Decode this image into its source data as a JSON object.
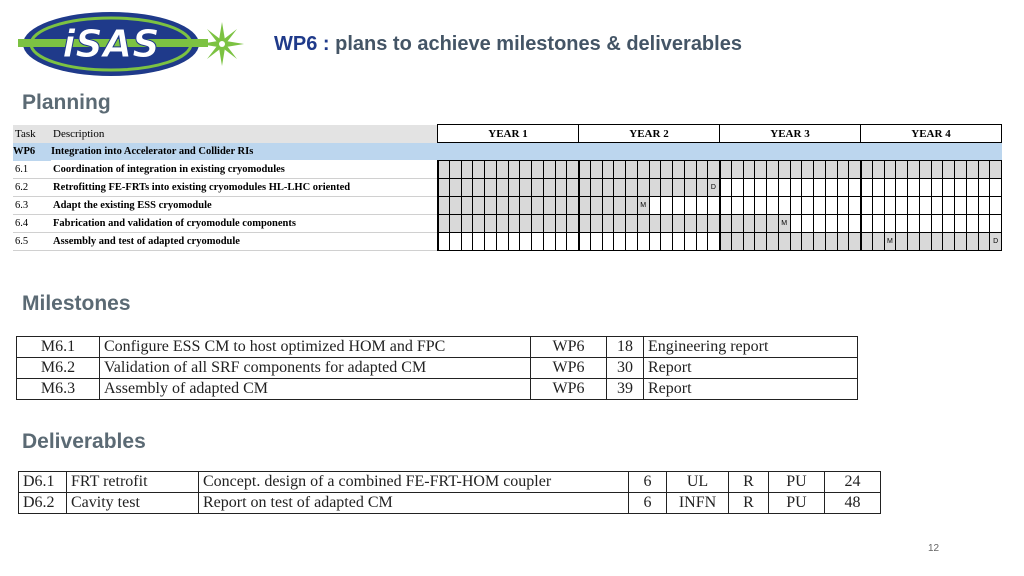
{
  "logo": {
    "text": "iSAS",
    "colors": {
      "blue": "#1f3a8a",
      "green": "#7cc242",
      "light": "#bfe0a0"
    }
  },
  "header": {
    "title_strong": "WP6 :",
    "title_rest": " plans to achieve milestones & deliverables"
  },
  "sections": {
    "planning": "Planning",
    "milestones": "Milestones",
    "deliverables": "Deliverables"
  },
  "gantt": {
    "col_task": "Task",
    "col_desc": "Description",
    "years": [
      "YEAR 1",
      "YEAR 2",
      "YEAR 3",
      "YEAR 4"
    ],
    "months": 48,
    "wp_row": {
      "task": "WP6",
      "desc": "Integration into Accelerator and Collider RIs"
    },
    "tasks": [
      {
        "task": "6.1",
        "desc": "Coordination of integration in existing cryomodules",
        "start": 1,
        "end": 48,
        "marks": {}
      },
      {
        "task": "6.2",
        "desc": "Retrofitting FE-FRTs into existing cryomodules HL-LHC oriented",
        "start": 1,
        "end": 24,
        "marks": {
          "24": "D"
        }
      },
      {
        "task": "6.3",
        "desc": "Adapt the existing ESS cryomodule",
        "start": 1,
        "end": 18,
        "marks": {
          "18": "M"
        }
      },
      {
        "task": "6.4",
        "desc": "Fabrication and validation of cryomodule components",
        "start": 1,
        "end": 30,
        "marks": {
          "30": "M"
        }
      },
      {
        "task": "6.5",
        "desc": "Assembly and test of adapted cryomodule",
        "start": 25,
        "end": 48,
        "marks": {
          "39": "M",
          "48": "D"
        }
      }
    ]
  },
  "milestones": [
    [
      "M6.1",
      "Configure ESS CM to host optimized HOM and FPC",
      "WP6",
      "18",
      "Engineering report"
    ],
    [
      "M6.2",
      "Validation of all SRF components for adapted CM",
      "WP6",
      "30",
      "Report"
    ],
    [
      "M6.3",
      "Assembly of adapted CM",
      "WP6",
      "39",
      "Report"
    ]
  ],
  "deliverables": [
    [
      "D6.1",
      "FRT retrofit",
      "Concept. design of a combined FE-FRT-HOM coupler",
      "6",
      "UL",
      "R",
      "PU",
      "24"
    ],
    [
      "D6.2",
      "Cavity test",
      "Report on test of adapted CM",
      "6",
      "INFN",
      "R",
      "PU",
      "48"
    ]
  ],
  "page_number": "12"
}
